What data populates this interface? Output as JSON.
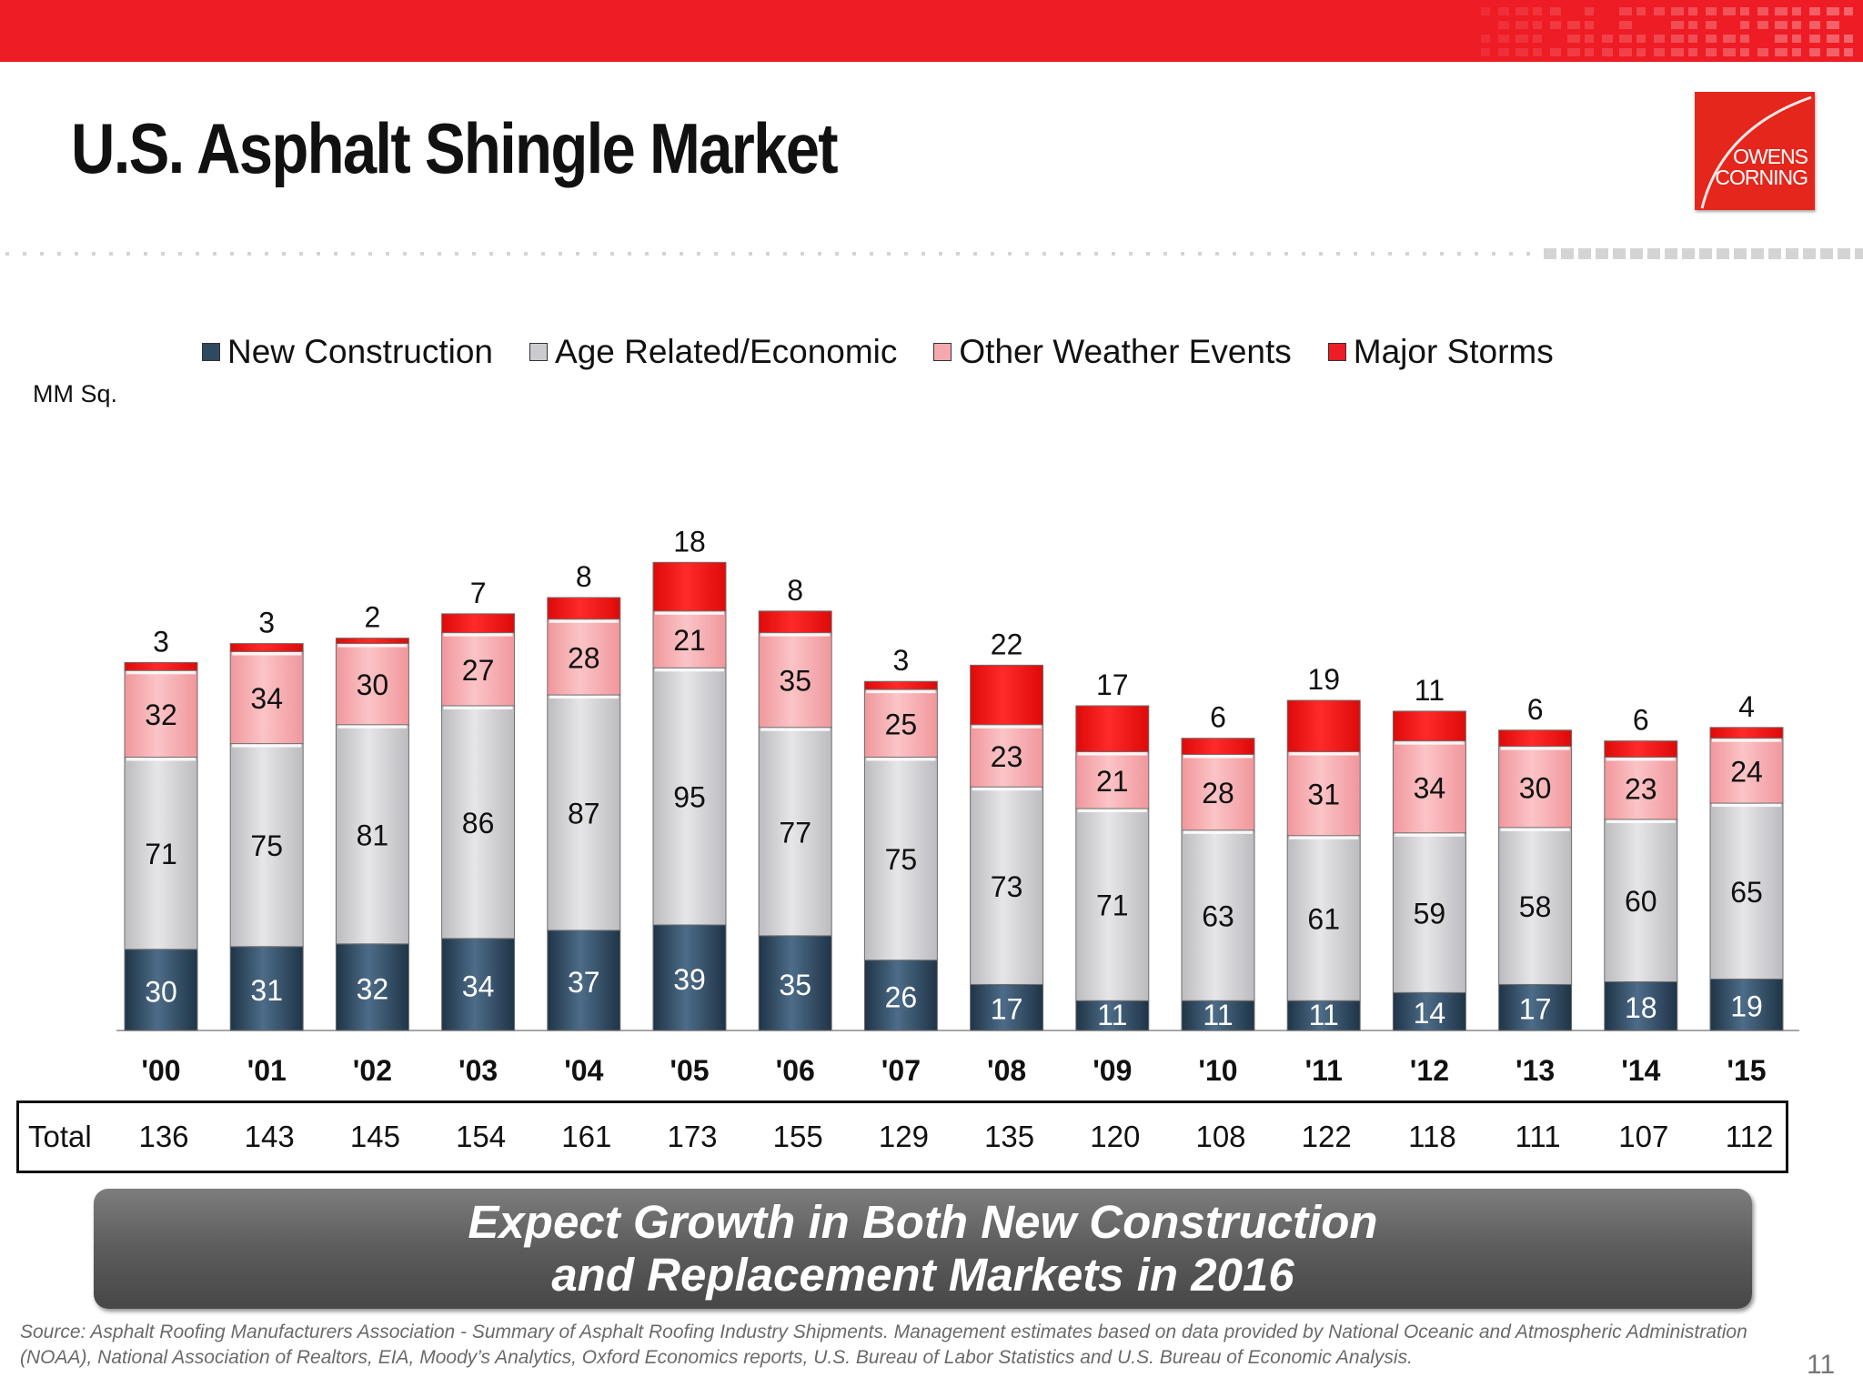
{
  "title": "U.S. Asphalt Shingle Market",
  "logo": {
    "text": "OWENS\nCORNING",
    "color": "#e4261c"
  },
  "unit_label": "MM Sq.",
  "legend": [
    {
      "label": "New  Construction",
      "color": "#2e4a62"
    },
    {
      "label": "Age Related/Economic",
      "color": "#cccccf"
    },
    {
      "label": "Other Weather Events",
      "color": "#f6a9ad"
    },
    {
      "label": "Major Storms",
      "color": "#ee1c25"
    }
  ],
  "chart_data": {
    "type": "bar",
    "stacked": true,
    "title": "U.S. Asphalt Shingle Market",
    "ylabel": "MM Sq.",
    "categories": [
      "'00",
      "'01",
      "'02",
      "'03",
      "'04",
      "'05",
      "'06",
      "'07",
      "'08",
      "'09",
      "'10",
      "'11",
      "'12",
      "'13",
      "'14",
      "'15"
    ],
    "series": [
      {
        "name": "New  Construction",
        "color": "#2e4a62",
        "values": [
          30,
          31,
          32,
          34,
          37,
          39,
          35,
          26,
          17,
          11,
          11,
          11,
          14,
          17,
          18,
          19
        ]
      },
      {
        "name": "Age Related/Economic",
        "color": "#cccccf",
        "values": [
          71,
          75,
          81,
          86,
          87,
          95,
          77,
          75,
          73,
          71,
          63,
          61,
          59,
          58,
          60,
          65
        ]
      },
      {
        "name": "Other Weather Events",
        "color": "#f6a9ad",
        "values": [
          32,
          34,
          30,
          27,
          28,
          21,
          35,
          25,
          23,
          21,
          28,
          31,
          34,
          30,
          23,
          24
        ]
      },
      {
        "name": "Major Storms",
        "color": "#ee1c25",
        "values": [
          3,
          3,
          2,
          7,
          8,
          18,
          8,
          3,
          22,
          17,
          6,
          19,
          11,
          6,
          6,
          4
        ]
      }
    ],
    "totals_label": "Total",
    "totals": [
      136,
      143,
      145,
      154,
      161,
      173,
      155,
      129,
      135,
      120,
      108,
      122,
      118,
      111,
      107,
      112
    ],
    "ylim": [
      0,
      180
    ],
    "grid": false,
    "legend_position": "top"
  },
  "banner": {
    "line1": "Expect Growth in Both New Construction",
    "line2": "and Replacement Markets in 2016"
  },
  "source_note": "Source: Asphalt Roofing Manufacturers Association - Summary of Asphalt Roofing Industry Shipments. Management estimates based on data provided by National Oceanic and Atmospheric Administration (NOAA), National Association of Realtors, EIA, Moody’s Analytics, Oxford Economics reports, U.S. Bureau of Labor Statistics and U.S. Bureau of Economic Analysis.",
  "page_number": "11"
}
